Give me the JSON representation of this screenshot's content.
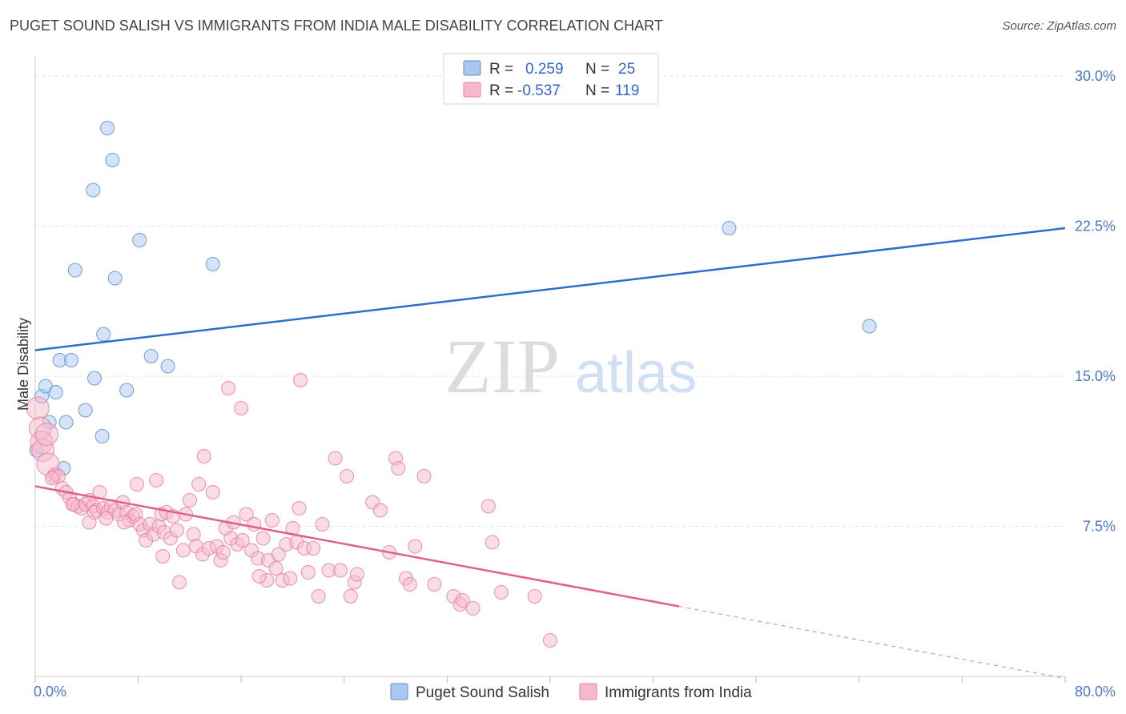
{
  "title": "PUGET SOUND SALISH VS IMMIGRANTS FROM INDIA MALE DISABILITY CORRELATION CHART",
  "source": "Source: ZipAtlas.com",
  "watermark": {
    "zip": "ZIP",
    "atlas": "atlas"
  },
  "colors": {
    "blue_fill": "#a9c8ef",
    "blue_stroke": "#5b8fd6",
    "blue_line": "#2a6fcc",
    "pink_fill": "#f6b9cc",
    "pink_stroke": "#e87fa0",
    "pink_line": "#e0608e",
    "grid": "#e3e3e3",
    "tick_text": "#4a78c8"
  },
  "stats": {
    "rows": [
      {
        "r_label": "R =",
        "r_value": "0.259",
        "n_label": "N =",
        "n_value": "25",
        "color": "blue"
      },
      {
        "r_label": "R =",
        "r_value": "-0.537",
        "n_label": "N =",
        "n_value": "119",
        "color": "pink"
      }
    ]
  },
  "chart_data": {
    "type": "scatter",
    "ylabel": "Male Disability",
    "xlim": [
      0,
      80
    ],
    "ylim": [
      0,
      31
    ],
    "x_tick_labels": [
      {
        "value": 0,
        "label": "0.0%"
      },
      {
        "value": 80,
        "label": "80.0%"
      }
    ],
    "x_minor_ticks": [
      0,
      8,
      16,
      24,
      32,
      40,
      48,
      56,
      64,
      72,
      80
    ],
    "y_ticks": [
      {
        "value": 7.5,
        "label": "7.5%"
      },
      {
        "value": 15.0,
        "label": "15.0%"
      },
      {
        "value": 22.5,
        "label": "22.5%"
      },
      {
        "value": 30.0,
        "label": "30.0%"
      }
    ],
    "legend": [
      "Puget Sound Salish",
      "Immigrants from India"
    ],
    "series": [
      {
        "name": "Puget Sound Salish",
        "color": "blue",
        "points": [
          [
            0.1,
            11.3
          ],
          [
            0.5,
            14.0
          ],
          [
            0.8,
            14.5
          ],
          [
            1.1,
            12.7
          ],
          [
            1.6,
            14.2
          ],
          [
            1.9,
            15.8
          ],
          [
            2.2,
            10.4
          ],
          [
            2.4,
            12.7
          ],
          [
            2.8,
            15.8
          ],
          [
            3.1,
            20.3
          ],
          [
            4.5,
            24.3
          ],
          [
            4.6,
            14.9
          ],
          [
            3.9,
            13.3
          ],
          [
            5.2,
            12.0
          ],
          [
            5.3,
            17.1
          ],
          [
            5.6,
            27.4
          ],
          [
            6.0,
            25.8
          ],
          [
            6.2,
            19.9
          ],
          [
            7.1,
            14.3
          ],
          [
            8.1,
            21.8
          ],
          [
            9.0,
            16.0
          ],
          [
            10.3,
            15.5
          ],
          [
            13.8,
            20.6
          ],
          [
            53.9,
            22.4
          ],
          [
            64.8,
            17.5
          ]
        ],
        "trend": {
          "x": [
            0,
            80
          ],
          "y": [
            16.3,
            22.4
          ]
        }
      },
      {
        "name": "Immigrants from India",
        "color": "pink",
        "points": [
          [
            0.2,
            13.4
          ],
          [
            0.4,
            12.4
          ],
          [
            0.5,
            11.7
          ],
          [
            0.6,
            11.3
          ],
          [
            1.0,
            10.6
          ],
          [
            1.4,
            10.0
          ],
          [
            1.6,
            10.1
          ],
          [
            1.8,
            10.0
          ],
          [
            2.1,
            9.4
          ],
          [
            2.4,
            9.2
          ],
          [
            2.7,
            8.9
          ],
          [
            3.0,
            8.6
          ],
          [
            3.3,
            8.5
          ],
          [
            3.6,
            8.4
          ],
          [
            3.9,
            8.6
          ],
          [
            4.2,
            8.8
          ],
          [
            4.5,
            8.5
          ],
          [
            4.8,
            8.3
          ],
          [
            4.2,
            7.7
          ],
          [
            4.6,
            8.2
          ],
          [
            5.0,
            9.2
          ],
          [
            5.3,
            8.4
          ],
          [
            5.6,
            8.2
          ],
          [
            5.9,
            8.5
          ],
          [
            6.2,
            8.3
          ],
          [
            6.5,
            8.1
          ],
          [
            6.8,
            8.7
          ],
          [
            7.1,
            8.2
          ],
          [
            7.3,
            7.8
          ],
          [
            7.6,
            8.0
          ],
          [
            7.8,
            8.1
          ],
          [
            7.9,
            9.6
          ],
          [
            8.1,
            7.6
          ],
          [
            8.4,
            7.3
          ],
          [
            8.6,
            6.8
          ],
          [
            8.9,
            7.6
          ],
          [
            9.2,
            7.1
          ],
          [
            9.4,
            9.8
          ],
          [
            9.6,
            7.5
          ],
          [
            9.8,
            8.1
          ],
          [
            10.0,
            7.2
          ],
          [
            10.2,
            8.2
          ],
          [
            10.5,
            6.9
          ],
          [
            10.7,
            8.0
          ],
          [
            11.0,
            7.3
          ],
          [
            11.2,
            4.7
          ],
          [
            11.5,
            6.3
          ],
          [
            11.7,
            8.1
          ],
          [
            12.0,
            8.8
          ],
          [
            12.3,
            7.1
          ],
          [
            12.5,
            6.5
          ],
          [
            12.7,
            9.6
          ],
          [
            13.0,
            6.1
          ],
          [
            13.1,
            11.0
          ],
          [
            13.5,
            6.4
          ],
          [
            13.8,
            9.2
          ],
          [
            14.1,
            6.5
          ],
          [
            14.4,
            5.8
          ],
          [
            14.6,
            6.2
          ],
          [
            14.8,
            7.4
          ],
          [
            15.2,
            6.9
          ],
          [
            15.0,
            14.4
          ],
          [
            15.4,
            7.7
          ],
          [
            15.7,
            6.6
          ],
          [
            16.1,
            6.8
          ],
          [
            16.0,
            13.4
          ],
          [
            16.4,
            8.1
          ],
          [
            16.8,
            6.3
          ],
          [
            17.0,
            7.6
          ],
          [
            17.3,
            5.9
          ],
          [
            17.7,
            6.9
          ],
          [
            18.0,
            4.8
          ],
          [
            18.1,
            5.8
          ],
          [
            18.4,
            7.8
          ],
          [
            18.7,
            5.4
          ],
          [
            18.9,
            6.1
          ],
          [
            19.2,
            4.8
          ],
          [
            19.5,
            6.6
          ],
          [
            20.0,
            7.4
          ],
          [
            20.3,
            6.7
          ],
          [
            20.5,
            8.4
          ],
          [
            20.6,
            14.8
          ],
          [
            20.9,
            6.4
          ],
          [
            21.2,
            5.2
          ],
          [
            21.6,
            6.4
          ],
          [
            22.0,
            4.0
          ],
          [
            22.3,
            7.6
          ],
          [
            22.8,
            5.3
          ],
          [
            23.3,
            10.9
          ],
          [
            23.7,
            5.3
          ],
          [
            24.2,
            10.0
          ],
          [
            24.5,
            4.0
          ],
          [
            24.8,
            4.7
          ],
          [
            25.0,
            5.1
          ],
          [
            26.2,
            8.7
          ],
          [
            26.8,
            8.3
          ],
          [
            28.0,
            10.9
          ],
          [
            28.2,
            10.4
          ],
          [
            28.8,
            4.9
          ],
          [
            29.1,
            4.6
          ],
          [
            29.5,
            6.5
          ],
          [
            30.2,
            10.0
          ],
          [
            31.0,
            4.6
          ],
          [
            32.5,
            4.0
          ],
          [
            33.0,
            3.6
          ],
          [
            33.2,
            3.8
          ],
          [
            34.0,
            3.4
          ],
          [
            35.2,
            8.5
          ],
          [
            35.5,
            6.7
          ],
          [
            36.2,
            4.2
          ],
          [
            38.8,
            4.0
          ],
          [
            40.0,
            1.8
          ],
          [
            0.9,
            12.1
          ],
          [
            1.3,
            9.9
          ],
          [
            2.9,
            8.6
          ],
          [
            5.5,
            7.9
          ],
          [
            6.9,
            7.7
          ],
          [
            9.9,
            6.0
          ],
          [
            17.4,
            5.0
          ],
          [
            19.8,
            4.9
          ],
          [
            27.5,
            6.2
          ]
        ],
        "trend": {
          "x": [
            0,
            50
          ],
          "y": [
            9.5,
            3.5
          ]
        },
        "trend_dashed": {
          "x": [
            50,
            80
          ],
          "y": [
            3.5,
            -0.1
          ]
        }
      }
    ]
  }
}
